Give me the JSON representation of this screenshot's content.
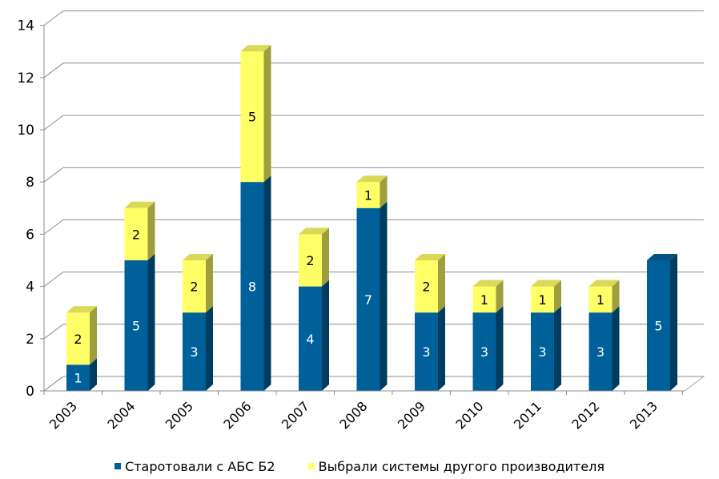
{
  "chart_data": {
    "type": "bar",
    "stacked": true,
    "three_d": true,
    "categories": [
      "2003",
      "2004",
      "2005",
      "2006",
      "2007",
      "2008",
      "2009",
      "2010",
      "2011",
      "2012",
      "2013"
    ],
    "series": [
      {
        "name": "Старотовали с АБС Б2",
        "color": "#00609a",
        "label_color": "#ffffff",
        "values": [
          1,
          5,
          3,
          8,
          4,
          7,
          3,
          3,
          3,
          3,
          5
        ]
      },
      {
        "name": "Выбрали системы другого производителя",
        "color": "#ffff66",
        "label_color": "#000000",
        "values": [
          2,
          2,
          2,
          5,
          2,
          1,
          2,
          1,
          1,
          1,
          0
        ]
      }
    ],
    "ylim": [
      0,
      14
    ],
    "yticks": [
      "0",
      "2",
      "4",
      "6",
      "8",
      "10",
      "12",
      "14"
    ],
    "grid": true,
    "legend_position": "bottom"
  }
}
